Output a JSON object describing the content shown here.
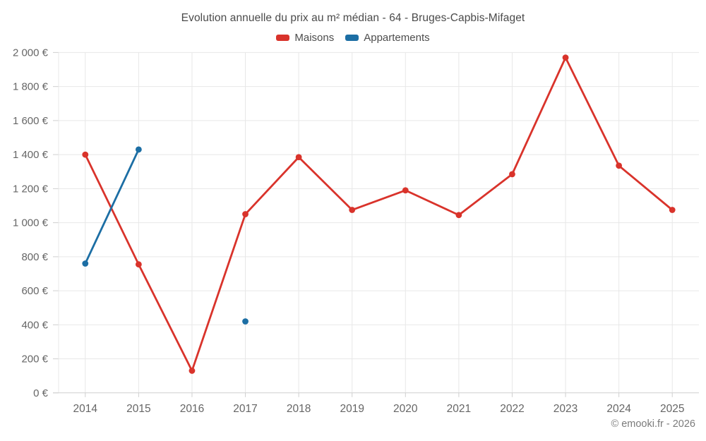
{
  "title": "Evolution annuelle du prix au m² médian - 64 - Bruges-Capbis-Mifaget",
  "attribution": "© emooki.fr - 2026",
  "legend": [
    {
      "label": "Maisons",
      "color": "#d9332b"
    },
    {
      "label": "Appartements",
      "color": "#1c6ea4"
    }
  ],
  "colors": {
    "maisons": "#d9332b",
    "appartements": "#1c6ea4",
    "gridline": "#e8e8e8",
    "axis_line": "#cfcfcf",
    "axis_label": "#666666",
    "title_text": "#4a4a4a",
    "attribution_text": "#7b7b7b"
  },
  "chart_data": {
    "type": "line",
    "title": "Evolution annuelle du prix au m² médian - 64 - Bruges-Capbis-Mifaget",
    "xlabel": "",
    "ylabel": "",
    "categories": [
      "2014",
      "2015",
      "2016",
      "2017",
      "2018",
      "2019",
      "2020",
      "2021",
      "2022",
      "2023",
      "2024",
      "2025"
    ],
    "series": [
      {
        "name": "Maisons",
        "color": "#d9332b",
        "values": [
          1400,
          755,
          130,
          1050,
          1385,
          1075,
          1190,
          1045,
          1285,
          1970,
          1335,
          1075
        ]
      },
      {
        "name": "Appartements",
        "color": "#1c6ea4",
        "values": [
          760,
          1430,
          null,
          420,
          null,
          null,
          null,
          null,
          null,
          null,
          null,
          null
        ]
      }
    ],
    "ylim": [
      0,
      2000
    ],
    "ytick_step": 200,
    "ytick_labels": [
      "0 €",
      "200 €",
      "400 €",
      "600 €",
      "800 €",
      "1 000 €",
      "1 200 €",
      "1 400 €",
      "1 600 €",
      "1 800 €",
      "2 000 €"
    ],
    "grid": true,
    "legend_position": "top",
    "currency_suffix": "€"
  }
}
